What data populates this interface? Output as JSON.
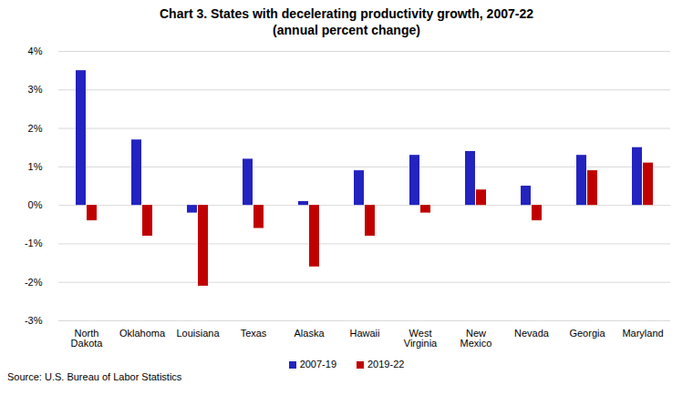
{
  "chart_data": {
    "type": "bar",
    "title": "Chart 3. States with decelerating productivity growth, 2007-22",
    "subtitle": "(annual percent change)",
    "caption": "Source: U.S. Bureau of Labor Statistics",
    "categories": [
      "North Dakota",
      "Oklahoma",
      "Louisiana",
      "Texas",
      "Alaska",
      "Hawaii",
      "West Virginia",
      "New Mexico",
      "Nevada",
      "Georgia",
      "Maryland"
    ],
    "series": [
      {
        "name": "2007-19",
        "color": "#2323C0",
        "values": [
          3.5,
          1.7,
          -0.2,
          1.2,
          0.1,
          0.9,
          1.3,
          1.4,
          0.5,
          1.3,
          1.5
        ]
      },
      {
        "name": "2019-22",
        "color": "#C00000",
        "values": [
          -0.4,
          -0.8,
          -2.1,
          -0.6,
          -1.6,
          -0.8,
          -0.2,
          0.4,
          -0.4,
          0.9,
          1.1
        ]
      }
    ],
    "ylim": [
      -3,
      4
    ],
    "yticks": [
      {
        "value": -3,
        "label": "-3%"
      },
      {
        "value": -2,
        "label": "-2%"
      },
      {
        "value": -1,
        "label": "-1%"
      },
      {
        "value": 0,
        "label": "0%"
      },
      {
        "value": 1,
        "label": "1%"
      },
      {
        "value": 2,
        "label": "2%"
      },
      {
        "value": 3,
        "label": "3%"
      },
      {
        "value": 4,
        "label": "4%"
      }
    ],
    "grid": true,
    "legend": "bottom"
  }
}
